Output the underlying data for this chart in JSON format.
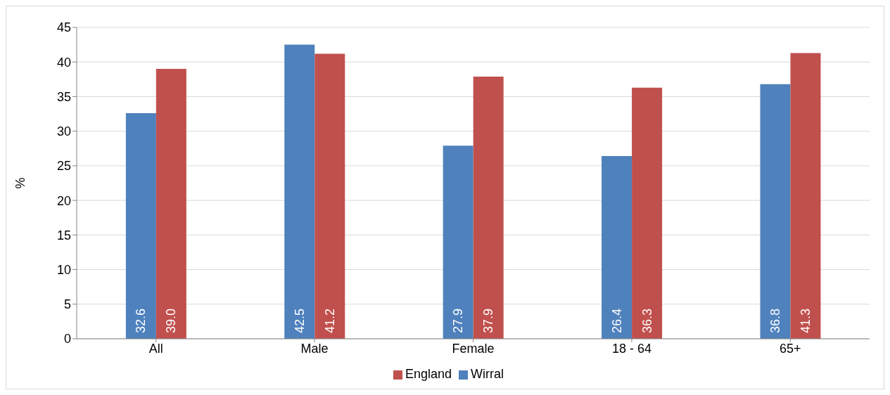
{
  "chart_data": {
    "type": "bar",
    "ylabel": "%",
    "categories": [
      "All",
      "Male",
      "Female",
      "18 - 64",
      "65+"
    ],
    "series": [
      {
        "name": "Wirral",
        "color": "#4f81bd",
        "values": [
          32.6,
          42.5,
          27.9,
          26.4,
          36.8
        ],
        "value_labels": [
          "32.6",
          "42.5",
          "27.9",
          "26.4",
          "36.8"
        ]
      },
      {
        "name": "England",
        "color": "#c0504d",
        "values": [
          39.0,
          41.2,
          37.9,
          36.3,
          41.3
        ],
        "value_labels": [
          "39.0",
          "41.2",
          "37.9",
          "36.3",
          "41.3"
        ]
      }
    ],
    "ylim": [
      0,
      45
    ],
    "yticks": [
      0,
      5,
      10,
      15,
      20,
      25,
      30,
      35,
      40,
      45
    ],
    "grid": "y",
    "legend": "bottom"
  }
}
